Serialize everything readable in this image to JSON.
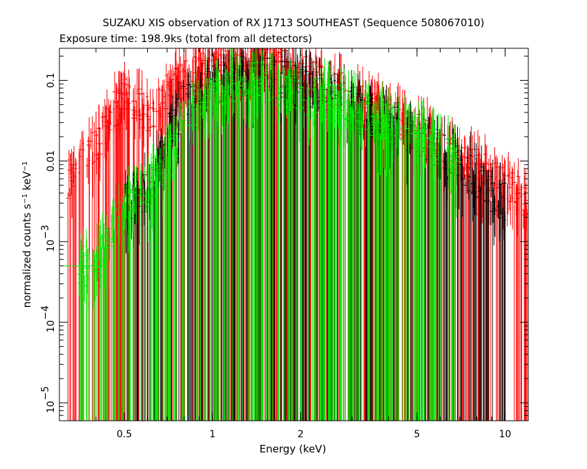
{
  "chart_data": {
    "type": "scatter",
    "title": "SUZAKU XIS observation of RX J1713 SOUTHEAST (Sequence 508067010)",
    "subtitle": "Exposure time: 198.9ks (total from all detectors)",
    "xlabel": "Energy (keV)",
    "ylabel": "normalized counts s^-1 keV^-1",
    "xscale": "log",
    "yscale": "log",
    "xlim": [
      0.3,
      12
    ],
    "ylim": [
      6e-06,
      0.25
    ],
    "x_ticks": [
      {
        "value": 0.5,
        "label": "0.5"
      },
      {
        "value": 1,
        "label": "1"
      },
      {
        "value": 2,
        "label": "2"
      },
      {
        "value": 5,
        "label": "5"
      },
      {
        "value": 10,
        "label": "10"
      }
    ],
    "y_ticks": [
      {
        "value": 1e-05,
        "mant": "10",
        "exp": "−5"
      },
      {
        "value": 0.0001,
        "mant": "10",
        "exp": "−4"
      },
      {
        "value": 0.001,
        "mant": "10",
        "exp": "−3"
      },
      {
        "value": 0.01,
        "label": "0.01"
      },
      {
        "value": 0.1,
        "label": "0.1"
      }
    ],
    "grid": false,
    "legend": "none",
    "series": [
      {
        "color": "#ff0000",
        "points": [
          [
            0.32,
            0.006
          ],
          [
            0.34,
            0.008
          ],
          [
            0.36,
            0.01
          ],
          [
            0.38,
            0.012
          ],
          [
            0.4,
            0.016
          ],
          [
            0.42,
            0.02
          ],
          [
            0.44,
            0.03
          ],
          [
            0.46,
            0.04
          ],
          [
            0.48,
            0.05
          ],
          [
            0.5,
            0.06
          ],
          [
            0.55,
            0.05
          ],
          [
            0.6,
            0.04
          ],
          [
            0.65,
            0.05
          ],
          [
            0.7,
            0.07
          ],
          [
            0.75,
            0.09
          ],
          [
            0.8,
            0.1
          ],
          [
            0.85,
            0.11
          ],
          [
            0.9,
            0.12
          ],
          [
            1.0,
            0.14
          ],
          [
            1.1,
            0.16
          ],
          [
            1.2,
            0.17
          ],
          [
            1.3,
            0.18
          ],
          [
            1.4,
            0.18
          ],
          [
            1.5,
            0.17
          ],
          [
            1.6,
            0.16
          ],
          [
            1.8,
            0.14
          ],
          [
            2.0,
            0.12
          ],
          [
            2.2,
            0.1
          ],
          [
            2.5,
            0.085
          ],
          [
            2.8,
            0.07
          ],
          [
            3.0,
            0.06
          ],
          [
            3.5,
            0.045
          ],
          [
            4.0,
            0.035
          ],
          [
            4.5,
            0.028
          ],
          [
            5.0,
            0.022
          ],
          [
            5.5,
            0.018
          ],
          [
            6.0,
            0.014
          ],
          [
            7.0,
            0.01
          ],
          [
            8.0,
            0.008
          ],
          [
            9.0,
            0.006
          ],
          [
            10.0,
            0.005
          ],
          [
            11.0,
            0.004
          ],
          [
            12.0,
            0.003
          ]
        ]
      },
      {
        "color": "#000000",
        "points": [
          [
            0.5,
            0.003
          ],
          [
            0.6,
            0.004
          ],
          [
            0.7,
            0.02
          ],
          [
            0.8,
            0.05
          ],
          [
            0.9,
            0.07
          ],
          [
            1.0,
            0.09
          ],
          [
            1.2,
            0.11
          ],
          [
            1.4,
            0.12
          ],
          [
            1.6,
            0.11
          ],
          [
            1.8,
            0.1
          ],
          [
            2.0,
            0.085
          ],
          [
            2.5,
            0.065
          ],
          [
            3.0,
            0.05
          ],
          [
            3.5,
            0.038
          ],
          [
            4.0,
            0.03
          ],
          [
            5.0,
            0.02
          ],
          [
            6.0,
            0.013
          ],
          [
            7.0,
            0.009
          ],
          [
            8.0,
            0.006
          ],
          [
            9.0,
            0.004
          ],
          [
            10.0,
            0.003
          ]
        ]
      },
      {
        "color": "#00ee00",
        "points": [
          [
            0.35,
            0.0005
          ],
          [
            0.4,
            0.0005
          ],
          [
            0.5,
            0.003
          ],
          [
            0.6,
            0.005
          ],
          [
            0.7,
            0.01
          ],
          [
            0.8,
            0.03
          ],
          [
            0.9,
            0.05
          ],
          [
            1.0,
            0.07
          ],
          [
            1.2,
            0.09
          ],
          [
            1.4,
            0.1
          ],
          [
            1.6,
            0.09
          ],
          [
            1.8,
            0.08
          ],
          [
            2.0,
            0.07
          ],
          [
            2.5,
            0.055
          ],
          [
            3.0,
            0.045
          ],
          [
            3.5,
            0.035
          ],
          [
            4.0,
            0.03
          ],
          [
            5.0,
            0.02
          ],
          [
            6.0,
            0.015
          ],
          [
            7.0,
            0.01
          ]
        ]
      }
    ]
  }
}
